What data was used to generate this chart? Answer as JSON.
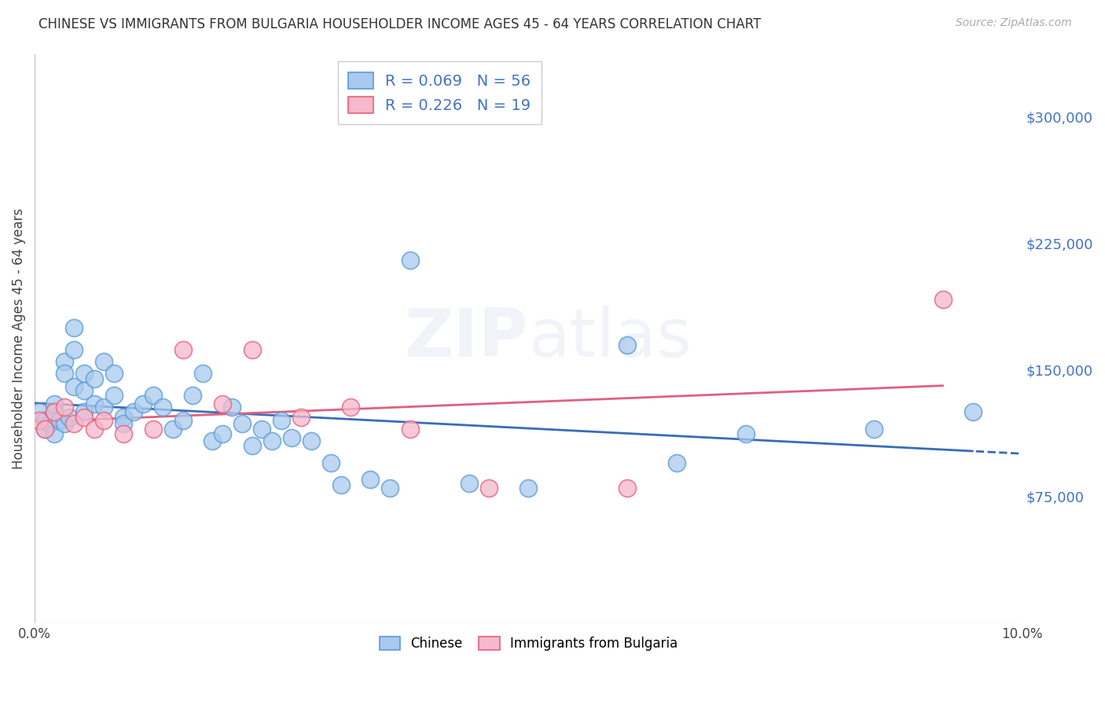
{
  "title": "CHINESE VS IMMIGRANTS FROM BULGARIA HOUSEHOLDER INCOME AGES 45 - 64 YEARS CORRELATION CHART",
  "source": "Source: ZipAtlas.com",
  "ylabel": "Householder Income Ages 45 - 64 years",
  "xlim": [
    0.0,
    0.1
  ],
  "ylim": [
    0,
    337500
  ],
  "yticks": [
    0,
    75000,
    150000,
    225000,
    300000
  ],
  "ytick_labels": [
    "",
    "$75,000",
    "$150,000",
    "$225,000",
    "$300,000"
  ],
  "xticks": [
    0.0,
    0.02,
    0.04,
    0.06,
    0.08,
    0.1
  ],
  "xtick_labels": [
    "0.0%",
    "",
    "",
    "",
    "",
    "10.0%"
  ],
  "chinese_color": "#A8CAEE",
  "bulgaria_color": "#F5B8CC",
  "chinese_edge_color": "#5B9BD5",
  "bulgaria_edge_color": "#E8607A",
  "trend_blue": "#3A6DB5",
  "trend_pink": "#E06080",
  "background_color": "#FFFFFF",
  "grid_color": "#D0D0D0",
  "axis_label_color": "#4472C4",
  "R_chinese": 0.069,
  "N_chinese": 56,
  "R_bulgaria": 0.226,
  "N_bulgaria": 19,
  "chinese_x": [
    0.0005,
    0.001,
    0.001,
    0.0015,
    0.002,
    0.002,
    0.002,
    0.0025,
    0.003,
    0.003,
    0.003,
    0.0035,
    0.004,
    0.004,
    0.004,
    0.005,
    0.005,
    0.005,
    0.006,
    0.006,
    0.007,
    0.007,
    0.008,
    0.008,
    0.009,
    0.009,
    0.01,
    0.011,
    0.012,
    0.013,
    0.014,
    0.015,
    0.016,
    0.017,
    0.018,
    0.019,
    0.02,
    0.021,
    0.022,
    0.023,
    0.024,
    0.025,
    0.026,
    0.028,
    0.03,
    0.031,
    0.034,
    0.036,
    0.038,
    0.044,
    0.05,
    0.06,
    0.065,
    0.072,
    0.085,
    0.095
  ],
  "chinese_y": [
    125000,
    120000,
    115000,
    118000,
    125000,
    130000,
    112000,
    120000,
    155000,
    148000,
    118000,
    122000,
    175000,
    162000,
    140000,
    148000,
    138000,
    125000,
    145000,
    130000,
    155000,
    128000,
    148000,
    135000,
    122000,
    118000,
    125000,
    130000,
    135000,
    128000,
    115000,
    120000,
    135000,
    148000,
    108000,
    112000,
    128000,
    118000,
    105000,
    115000,
    108000,
    120000,
    110000,
    108000,
    95000,
    82000,
    85000,
    80000,
    215000,
    83000,
    80000,
    165000,
    95000,
    112000,
    115000,
    125000
  ],
  "bulgaria_x": [
    0.0005,
    0.001,
    0.002,
    0.003,
    0.004,
    0.005,
    0.006,
    0.007,
    0.009,
    0.012,
    0.015,
    0.019,
    0.022,
    0.027,
    0.032,
    0.038,
    0.046,
    0.06,
    0.092
  ],
  "bulgaria_y": [
    120000,
    115000,
    125000,
    128000,
    118000,
    122000,
    115000,
    120000,
    112000,
    115000,
    162000,
    130000,
    162000,
    122000,
    128000,
    115000,
    80000,
    80000,
    192000
  ]
}
